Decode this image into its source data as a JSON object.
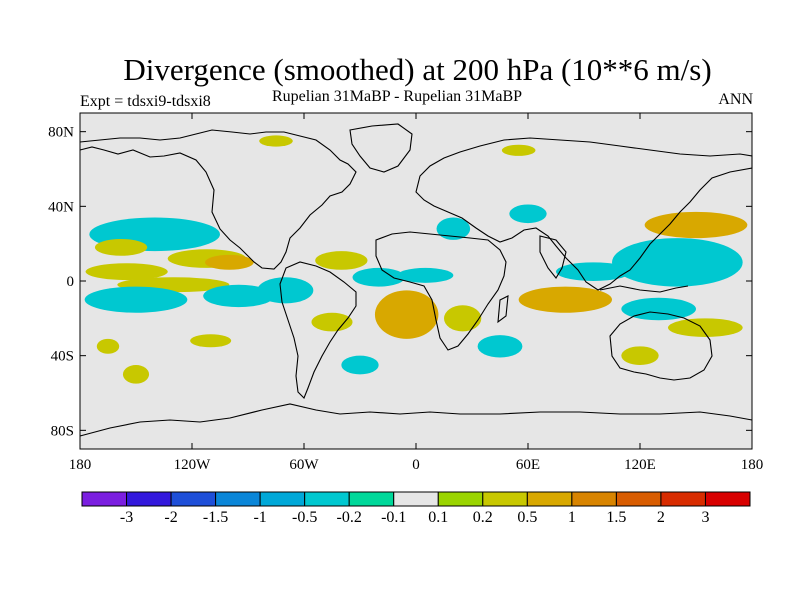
{
  "title": "Divergence (smoothed) at 200 hPa (10**6 m/s)",
  "left_label": "Expt = tdsxi9-tdsxi8",
  "center_label": "Rupelian  31MaBP - Rupelian  31MaBP",
  "right_label": "ANN",
  "lat_ticks": [
    "80N",
    "40N",
    "0",
    "40S",
    "80S"
  ],
  "lon_ticks": [
    "180",
    "120W",
    "60W",
    "0",
    "60E",
    "120E",
    "180"
  ],
  "colorbar": {
    "labels": [
      "-3",
      "-2",
      "-1.5",
      "-1",
      "-0.5",
      "-0.2",
      "-0.1",
      "0.1",
      "0.2",
      "0.5",
      "1",
      "1.5",
      "2",
      "3"
    ],
    "colors": [
      "#7b1fe0",
      "#3318dc",
      "#1e4fd8",
      "#0a86d8",
      "#00a8d8",
      "#00c8d0",
      "#00d89a",
      "#e6e6e6",
      "#9ad400",
      "#c8c800",
      "#d8a800",
      "#d88400",
      "#d85c00",
      "#d82c00",
      "#d80000"
    ]
  },
  "chart_data": {
    "type": "heatmap",
    "title": "Divergence (smoothed) at 200 hPa (10**6 m/s)",
    "x_range": [
      -180,
      180
    ],
    "y_range": [
      -90,
      90
    ],
    "x_ticks": [
      -180,
      -120,
      -60,
      0,
      60,
      120,
      180
    ],
    "y_ticks": [
      80,
      40,
      0,
      -40,
      -80
    ],
    "levels": [
      -3,
      -2,
      -1.5,
      -1,
      -0.5,
      -0.2,
      -0.1,
      0.1,
      0.2,
      0.5,
      1,
      1.5,
      2,
      3
    ],
    "background_value_range": [
      -0.1,
      0.1
    ],
    "blobs": [
      {
        "lon": -140,
        "lat": 25,
        "level": "-0.2",
        "w": 70,
        "h": 18
      },
      {
        "lon": -158,
        "lat": 18,
        "level": "0.2",
        "w": 28,
        "h": 9
      },
      {
        "lon": -112,
        "lat": 12,
        "level": "0.2",
        "w": 42,
        "h": 10
      },
      {
        "lon": -100,
        "lat": 10,
        "level": "0.5",
        "w": 26,
        "h": 8
      },
      {
        "lon": -155,
        "lat": 5,
        "level": "0.2",
        "w": 44,
        "h": 9
      },
      {
        "lon": -130,
        "lat": -2,
        "level": "0.2",
        "w": 60,
        "h": 8
      },
      {
        "lon": -150,
        "lat": -10,
        "level": "-0.2",
        "w": 55,
        "h": 14
      },
      {
        "lon": -95,
        "lat": -8,
        "level": "-0.2",
        "w": 38,
        "h": 12
      },
      {
        "lon": -70,
        "lat": -5,
        "level": "-0.2",
        "w": 30,
        "h": 14
      },
      {
        "lon": -45,
        "lat": -22,
        "level": "0.2",
        "w": 22,
        "h": 10
      },
      {
        "lon": -30,
        "lat": -45,
        "level": "-0.2",
        "w": 20,
        "h": 10
      },
      {
        "lon": -150,
        "lat": -50,
        "level": "0.2",
        "w": 14,
        "h": 10
      },
      {
        "lon": -110,
        "lat": -32,
        "level": "0.2",
        "w": 22,
        "h": 7
      },
      {
        "lon": -165,
        "lat": -35,
        "level": "0.2",
        "w": 12,
        "h": 8
      },
      {
        "lon": -40,
        "lat": 11,
        "level": "0.2",
        "w": 28,
        "h": 10
      },
      {
        "lon": -20,
        "lat": 2,
        "level": "-0.2",
        "w": 28,
        "h": 10
      },
      {
        "lon": 5,
        "lat": 3,
        "level": "-0.2",
        "w": 30,
        "h": 8
      },
      {
        "lon": 20,
        "lat": 28,
        "level": "-0.2",
        "w": 18,
        "h": 12
      },
      {
        "lon": 60,
        "lat": 36,
        "level": "-0.2",
        "w": 20,
        "h": 10
      },
      {
        "lon": -5,
        "lat": -18,
        "level": "0.5",
        "w": 34,
        "h": 26
      },
      {
        "lon": 25,
        "lat": -20,
        "level": "0.2",
        "w": 20,
        "h": 14
      },
      {
        "lon": 45,
        "lat": -35,
        "level": "-0.2",
        "w": 24,
        "h": 12
      },
      {
        "lon": 80,
        "lat": -10,
        "level": "0.5",
        "w": 50,
        "h": 14
      },
      {
        "lon": 95,
        "lat": 5,
        "level": "-0.2",
        "w": 40,
        "h": 10
      },
      {
        "lon": 140,
        "lat": 10,
        "level": "-0.2",
        "w": 70,
        "h": 26
      },
      {
        "lon": 150,
        "lat": 30,
        "level": "0.5",
        "w": 55,
        "h": 14
      },
      {
        "lon": 130,
        "lat": -15,
        "level": "-0.2",
        "w": 40,
        "h": 12
      },
      {
        "lon": 155,
        "lat": -25,
        "level": "0.2",
        "w": 40,
        "h": 10
      },
      {
        "lon": 120,
        "lat": -40,
        "level": "0.2",
        "w": 20,
        "h": 10
      },
      {
        "lon": 55,
        "lat": 70,
        "level": "0.2",
        "w": 18,
        "h": 6
      },
      {
        "lon": -75,
        "lat": 75,
        "level": "0.2",
        "w": 18,
        "h": 6
      }
    ]
  }
}
